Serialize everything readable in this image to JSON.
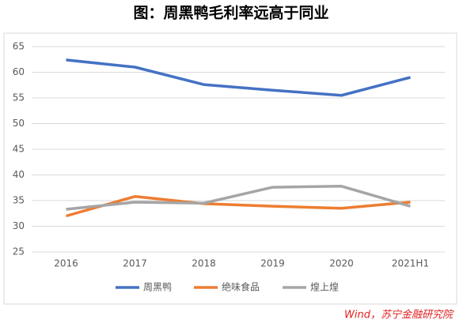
{
  "chart_data": {
    "type": "line",
    "title": "图：周黑鸭毛利率远高于同业",
    "categories": [
      "2016",
      "2017",
      "2018",
      "2019",
      "2020",
      "2021H1"
    ],
    "series": [
      {
        "name": "周黑鸭",
        "color": "#4472c4",
        "values": [
          62.4,
          61.0,
          57.6,
          56.5,
          55.5,
          59.0
        ]
      },
      {
        "name": "绝味食品",
        "color": "#ed7d31",
        "values": [
          32.0,
          35.8,
          34.4,
          33.9,
          33.5,
          34.7
        ]
      },
      {
        "name": "煌上煌",
        "color": "#a5a5a5",
        "values": [
          33.3,
          34.7,
          34.5,
          37.6,
          37.8,
          33.9
        ]
      }
    ],
    "ylim": [
      25,
      65
    ],
    "yticks": [
      25,
      30,
      35,
      40,
      45,
      50,
      55,
      60,
      65
    ],
    "grid": true,
    "legend": "bottom",
    "source": "Wind，苏宁金融研究院"
  }
}
